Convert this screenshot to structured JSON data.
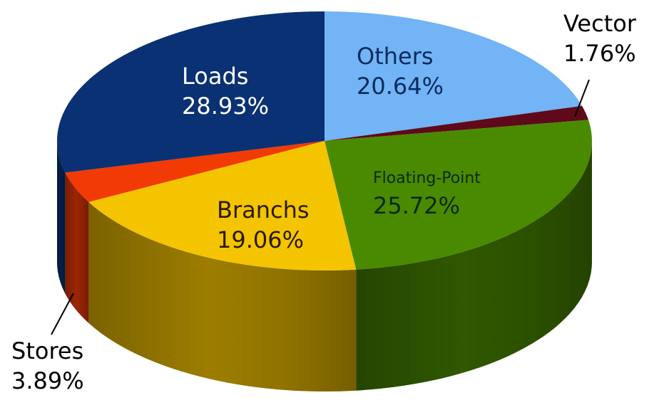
{
  "chart_data": {
    "type": "pie",
    "style": "3d",
    "title": "",
    "slices": [
      {
        "name": "Others",
        "value": 20.64,
        "label": "20.64%",
        "color": "#72B4F5"
      },
      {
        "name": "Vector",
        "value": 1.76,
        "label": "1.76%",
        "color": "#5E0A1A"
      },
      {
        "name": "Floating-Point",
        "value": 25.72,
        "label": "25.72%",
        "color": "#4A8A00"
      },
      {
        "name": "Branchs",
        "value": 19.06,
        "label": "19.06%",
        "color": "#F5C400"
      },
      {
        "name": "Stores",
        "value": 3.89,
        "label": "3.89%",
        "color": "#F23A05"
      },
      {
        "name": "Loads",
        "value": 28.93,
        "label": "28.93%",
        "color": "#0A3173"
      }
    ]
  }
}
